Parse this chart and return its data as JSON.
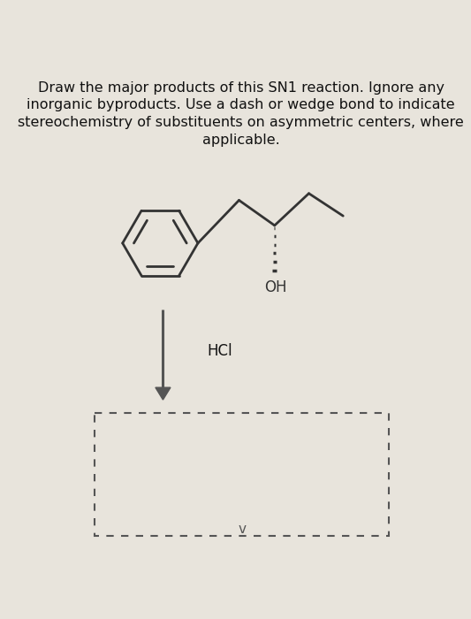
{
  "title_text": "Draw the major products of this SN1 reaction. Ignore any\ninorganic byproducts. Use a dash or wedge bond to indicate\nstereochemistry of substituents on asymmetric centers, where\napplicable.",
  "reagent": "HCl",
  "bg_color": "#e8e4dc",
  "line_color": "#333333",
  "arrow_color": "#555555",
  "text_color": "#111111",
  "dashed_box_color": "#555555",
  "title_fontsize": 11.5,
  "reagent_fontsize": 12,
  "oh_fontsize": 12
}
